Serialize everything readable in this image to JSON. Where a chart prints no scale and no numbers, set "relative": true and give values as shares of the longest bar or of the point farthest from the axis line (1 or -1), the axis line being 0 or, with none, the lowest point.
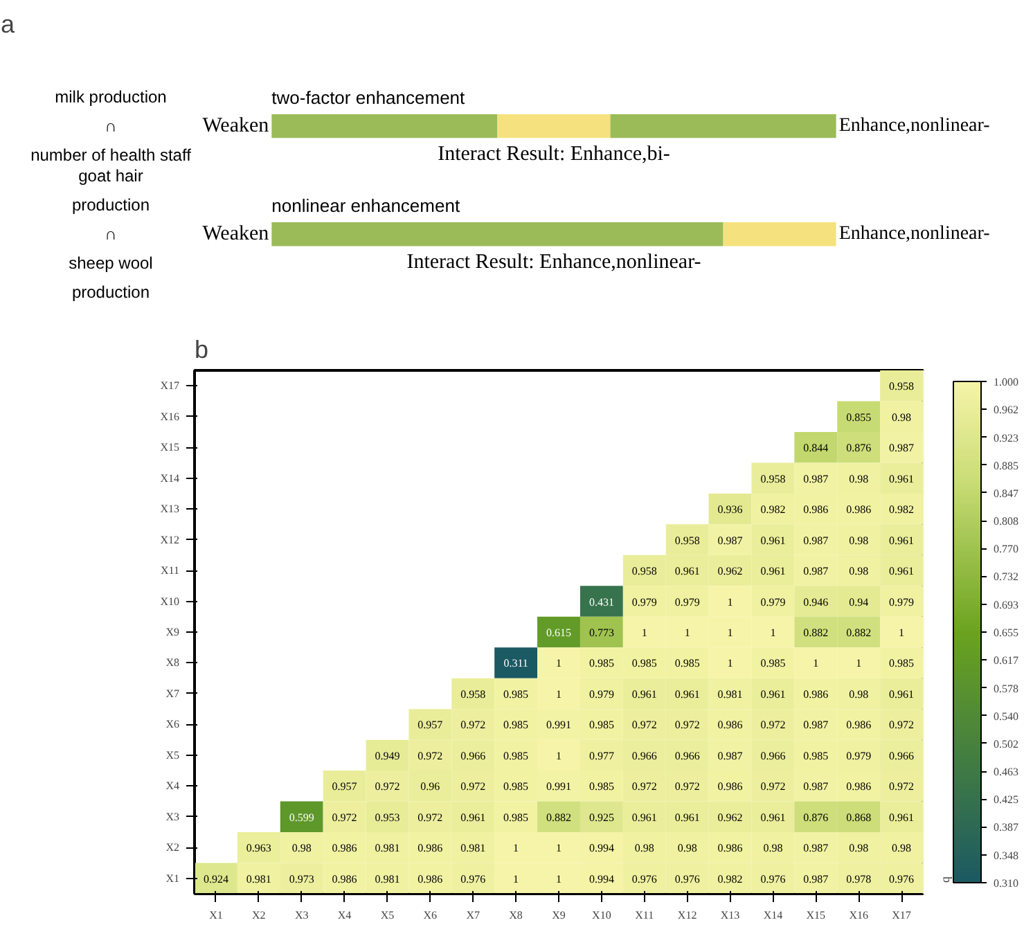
{
  "chart_data": [
    {
      "type": "bar",
      "title": "a",
      "orientation": "horizontal",
      "stacked": true,
      "relative": true,
      "categories": [
        "milk production\n∩\nnumber of health staff",
        "goat hair\nproduction\n∩\nsheep wool\nproduction"
      ],
      "series": [
        {
          "color": "#9bbb59",
          "values": [
            0.4,
            0.8
          ]
        },
        {
          "color": "#f5e17e",
          "values": [
            0.2,
            0.2
          ]
        },
        {
          "color": "#9bbb59",
          "values": [
            0.4,
            null
          ]
        }
      ],
      "annotations": [
        "two-factor enhancement",
        "Weaken",
        "Enhance,nonlinear-",
        "Interact Result: Enhance,bi-",
        "nonlinear enhancement",
        "Weaken",
        "Enhance,nonlinear-",
        "Interact Result: Enhance,nonlinear-"
      ]
    },
    {
      "type": "heatmap",
      "title": "b",
      "clabel": "q",
      "data_labels": true,
      "grid": false,
      "categories": [
        "X1",
        "X2",
        "X3",
        "X4",
        "X5",
        "X6",
        "X7",
        "X8",
        "X9",
        "X10",
        "X11",
        "X12",
        "X13",
        "X14",
        "X15",
        "X16",
        "X17"
      ],
      "y_categories": [
        "X17",
        "X16",
        "X15",
        "X14",
        "X13",
        "X12",
        "X11",
        "X10",
        "X9",
        "X8",
        "X7",
        "X6",
        "X5",
        "X4",
        "X3",
        "X2",
        "X1"
      ],
      "clim": [
        0.31,
        1.0
      ],
      "cticks": [
        {
          "value": 1.0,
          "label": "1.000"
        },
        {
          "value": 0.962,
          "label": "0.962"
        },
        {
          "value": 0.923,
          "label": "0.923"
        },
        {
          "value": 0.885,
          "label": "0.885"
        },
        {
          "value": 0.847,
          "label": "0.847"
        },
        {
          "value": 0.808,
          "label": "0.808"
        },
        {
          "value": 0.77,
          "label": "0.770"
        },
        {
          "value": 0.732,
          "label": "0.732"
        },
        {
          "value": 0.693,
          "label": "0.693"
        },
        {
          "value": 0.655,
          "label": "0.655"
        },
        {
          "value": 0.617,
          "label": "0.617"
        },
        {
          "value": 0.578,
          "label": "0.578"
        },
        {
          "value": 0.54,
          "label": "0.540"
        },
        {
          "value": 0.502,
          "label": "0.502"
        },
        {
          "value": 0.463,
          "label": "0.463"
        },
        {
          "value": 0.425,
          "label": "0.425"
        },
        {
          "value": 0.387,
          "label": "0.387"
        },
        {
          "value": 0.348,
          "label": "0.348"
        },
        {
          "value": 0.31,
          "label": "0.310"
        }
      ],
      "cells": [
        [
          null,
          null,
          null,
          null,
          null,
          null,
          null,
          null,
          null,
          null,
          null,
          null,
          null,
          null,
          null,
          null,
          0.958
        ],
        [
          null,
          null,
          null,
          null,
          null,
          null,
          null,
          null,
          null,
          null,
          null,
          null,
          null,
          null,
          null,
          0.855,
          0.98
        ],
        [
          null,
          null,
          null,
          null,
          null,
          null,
          null,
          null,
          null,
          null,
          null,
          null,
          null,
          null,
          0.844,
          0.876,
          0.987
        ],
        [
          null,
          null,
          null,
          null,
          null,
          null,
          null,
          null,
          null,
          null,
          null,
          null,
          null,
          0.958,
          0.987,
          0.98,
          0.961
        ],
        [
          null,
          null,
          null,
          null,
          null,
          null,
          null,
          null,
          null,
          null,
          null,
          null,
          0.936,
          0.982,
          0.986,
          0.986,
          0.982
        ],
        [
          null,
          null,
          null,
          null,
          null,
          null,
          null,
          null,
          null,
          null,
          null,
          0.958,
          0.987,
          0.961,
          0.987,
          0.98,
          0.961
        ],
        [
          null,
          null,
          null,
          null,
          null,
          null,
          null,
          null,
          null,
          null,
          0.958,
          0.961,
          0.962,
          0.961,
          0.987,
          0.98,
          0.961
        ],
        [
          null,
          null,
          null,
          null,
          null,
          null,
          null,
          null,
          null,
          0.431,
          0.979,
          0.979,
          1,
          0.979,
          0.946,
          0.94,
          0.979
        ],
        [
          null,
          null,
          null,
          null,
          null,
          null,
          null,
          null,
          0.615,
          0.773,
          1,
          1,
          1,
          1,
          0.882,
          0.882,
          1
        ],
        [
          null,
          null,
          null,
          null,
          null,
          null,
          null,
          0.311,
          1,
          0.985,
          0.985,
          0.985,
          1,
          0.985,
          1,
          1,
          0.985
        ],
        [
          null,
          null,
          null,
          null,
          null,
          null,
          0.958,
          0.985,
          1,
          0.979,
          0.961,
          0.961,
          0.981,
          0.961,
          0.986,
          0.98,
          0.961
        ],
        [
          null,
          null,
          null,
          null,
          null,
          0.957,
          0.972,
          0.985,
          0.991,
          0.985,
          0.972,
          0.972,
          0.986,
          0.972,
          0.987,
          0.986,
          0.972
        ],
        [
          null,
          null,
          null,
          null,
          0.949,
          0.972,
          0.966,
          0.985,
          1,
          0.977,
          0.966,
          0.966,
          0.987,
          0.966,
          0.985,
          0.979,
          0.966
        ],
        [
          null,
          null,
          null,
          0.957,
          0.972,
          0.96,
          0.972,
          0.985,
          0.991,
          0.985,
          0.972,
          0.972,
          0.986,
          0.972,
          0.987,
          0.986,
          0.972
        ],
        [
          null,
          null,
          0.599,
          0.972,
          0.953,
          0.972,
          0.961,
          0.985,
          0.882,
          0.925,
          0.961,
          0.961,
          0.962,
          0.961,
          0.876,
          0.868,
          0.961
        ],
        [
          null,
          0.963,
          0.98,
          0.986,
          0.981,
          0.986,
          0.981,
          1,
          1,
          0.994,
          0.98,
          0.98,
          0.986,
          0.98,
          0.987,
          0.98,
          0.98
        ],
        [
          0.924,
          0.981,
          0.973,
          0.986,
          0.981,
          0.986,
          0.976,
          1,
          1,
          0.994,
          0.976,
          0.976,
          0.982,
          0.976,
          0.987,
          0.978,
          0.976
        ]
      ]
    }
  ]
}
